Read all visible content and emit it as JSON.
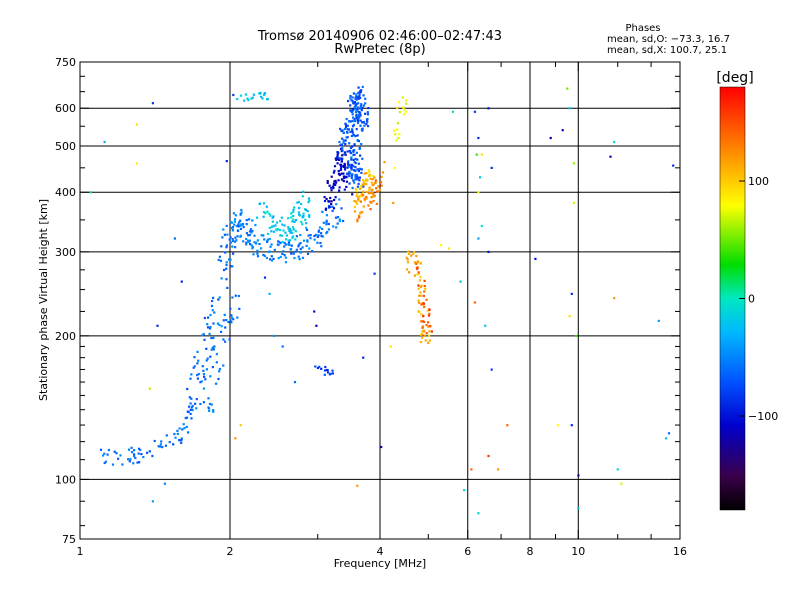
{
  "header": {
    "title_line1": "Tromsø 20140906 02:46:00–02:47:43",
    "title_line2": "RwPretec (8p)",
    "stats_title": "Phases",
    "stats_line1": "mean, sd,O: −73.3, 16.7",
    "stats_line2": "mean, sd,X: 100.7, 25.1"
  },
  "colorbar": {
    "label": "[deg]",
    "ticks": [
      {
        "value": 100,
        "label": "100"
      },
      {
        "value": 0,
        "label": "0"
      },
      {
        "value": -100,
        "label": "−100"
      }
    ],
    "range": [
      -180,
      180
    ]
  },
  "chart_data": {
    "type": "scatter",
    "title": "Tromsø 20140906 02:46:00–02:47:43",
    "subtitle": "RwPretec (8p)",
    "xlabel": "Frequency [MHz]",
    "ylabel": "Stationary phase Virtual Height [km]",
    "xscale": "log",
    "yscale": "log",
    "xlim": [
      1,
      16
    ],
    "ylim": [
      75,
      750
    ],
    "xticks": [
      {
        "value": 1,
        "label": "1"
      },
      {
        "value": 2,
        "label": "2"
      },
      {
        "value": 4,
        "label": "4"
      },
      {
        "value": 6,
        "label": "6"
      },
      {
        "value": 8,
        "label": "8"
      },
      {
        "value": 10,
        "label": "10"
      },
      {
        "value": 16,
        "label": "16"
      }
    ],
    "xminor": [
      3,
      5,
      7,
      9,
      12,
      14
    ],
    "xgrid": [
      2,
      4,
      6,
      8,
      10
    ],
    "yticks": [
      {
        "value": 75,
        "label": "75"
      },
      {
        "value": 100,
        "label": "100"
      },
      {
        "value": 200,
        "label": "200"
      },
      {
        "value": 300,
        "label": "300"
      },
      {
        "value": 400,
        "label": "400"
      },
      {
        "value": 500,
        "label": "500"
      },
      {
        "value": 600,
        "label": "600"
      },
      {
        "value": 750,
        "label": "750"
      }
    ],
    "yminor": [
      80,
      90,
      110,
      120,
      130,
      140,
      150,
      160,
      170,
      180,
      190,
      225,
      250,
      275,
      350,
      450,
      550,
      650,
      700
    ],
    "ygrid": [
      100,
      200,
      300,
      400,
      500,
      600
    ],
    "grid": true,
    "color_variable": "phase [deg]",
    "clusters": [
      {
        "points": [
          [
            1.1,
            113
          ],
          [
            1.15,
            112
          ],
          [
            1.2,
            111
          ],
          [
            1.28,
            112
          ],
          [
            1.35,
            114
          ],
          [
            1.45,
            117
          ],
          [
            1.55,
            122
          ],
          [
            1.62,
            128
          ],
          [
            1.66,
            140
          ],
          [
            1.7,
            155
          ],
          [
            1.75,
            175
          ],
          [
            1.8,
            200
          ],
          [
            1.88,
            225
          ],
          [
            1.95,
            255
          ],
          [
            1.98,
            290
          ]
        ],
        "phase": -60,
        "count": 130,
        "jf": 0.03,
        "jh": 0.03
      },
      {
        "points": [
          [
            1.8,
            140
          ],
          [
            1.85,
            170
          ],
          [
            1.9,
            190
          ],
          [
            1.97,
            210
          ],
          [
            2.03,
            240
          ]
        ],
        "phase": -55,
        "count": 50,
        "jf": 0.035,
        "jh": 0.06
      },
      {
        "points": [
          [
            1.95,
            300
          ],
          [
            2.0,
            325
          ],
          [
            2.05,
            350
          ],
          [
            2.12,
            335
          ],
          [
            2.2,
            320
          ],
          [
            2.35,
            305
          ],
          [
            2.5,
            300
          ],
          [
            2.7,
            305
          ],
          [
            2.9,
            315
          ],
          [
            3.1,
            340
          ],
          [
            3.3,
            370
          ]
        ],
        "phase": -55,
        "count": 200,
        "jf": 0.03,
        "jh": 0.05
      },
      {
        "points": [
          [
            2.3,
            370
          ],
          [
            2.45,
            340
          ],
          [
            2.6,
            330
          ],
          [
            2.75,
            350
          ],
          [
            2.85,
            380
          ]
        ],
        "phase": -20,
        "count": 90,
        "jf": 0.03,
        "jh": 0.05
      },
      {
        "points": [
          [
            3.1,
            360
          ],
          [
            3.2,
            400
          ],
          [
            3.3,
            440
          ],
          [
            3.35,
            470
          ],
          [
            3.45,
            420
          ]
        ],
        "phase": -110,
        "count": 90,
        "jf": 0.02,
        "jh": 0.06
      },
      {
        "points": [
          [
            3.38,
            480
          ],
          [
            3.45,
            540
          ],
          [
            3.55,
            600
          ],
          [
            3.65,
            640
          ],
          [
            3.7,
            560
          ],
          [
            3.6,
            500
          ],
          [
            3.5,
            450
          ],
          [
            3.62,
            420
          ]
        ],
        "phase": -70,
        "count": 220,
        "jf": 0.025,
        "jh": 0.05
      },
      {
        "points": [
          [
            3.6,
            380
          ],
          [
            3.7,
            400
          ],
          [
            3.75,
            430
          ],
          [
            3.85,
            410
          ]
        ],
        "phase": 105,
        "count": 50,
        "jf": 0.02,
        "jh": 0.04
      },
      {
        "points": [
          [
            3.6,
            360
          ],
          [
            3.7,
            375
          ],
          [
            3.85,
            390
          ],
          [
            3.95,
            420
          ],
          [
            4.0,
            450
          ]
        ],
        "phase": 130,
        "count": 45,
        "jf": 0.02,
        "jh": 0.04
      },
      {
        "points": [
          [
            4.5,
            280
          ],
          [
            4.7,
            300
          ],
          [
            4.8,
            270
          ],
          [
            4.85,
            240
          ],
          [
            4.9,
            210
          ],
          [
            4.95,
            195
          ]
        ],
        "phase": 110,
        "count": 55,
        "jf": 0.02,
        "jh": 0.04
      },
      {
        "points": [
          [
            4.8,
            280
          ],
          [
            4.9,
            250
          ],
          [
            4.95,
            225
          ],
          [
            5.0,
            205
          ]
        ],
        "phase": 150,
        "count": 30,
        "jf": 0.02,
        "jh": 0.03
      },
      {
        "points": [
          [
            4.4,
            580
          ],
          [
            4.45,
            620
          ],
          [
            4.35,
            520
          ]
        ],
        "phase": 80,
        "count": 16,
        "jf": 0.02,
        "jh": 0.04
      },
      {
        "points": [
          [
            2.1,
            630
          ],
          [
            2.25,
            635
          ],
          [
            2.4,
            640
          ]
        ],
        "phase": -20,
        "count": 20,
        "jf": 0.03,
        "jh": 0.015
      },
      {
        "points": [
          [
            3.0,
            172
          ],
          [
            3.1,
            168
          ],
          [
            3.2,
            170
          ]
        ],
        "phase": -85,
        "count": 14,
        "jf": 0.015,
        "jh": 0.015
      }
    ],
    "scatter_points": [
      [
        1.05,
        400,
        10
      ],
      [
        1.12,
        510,
        -30
      ],
      [
        1.3,
        555,
        90
      ],
      [
        1.3,
        460,
        85
      ],
      [
        1.4,
        615,
        -85
      ],
      [
        1.43,
        210,
        -90
      ],
      [
        1.38,
        155,
        65
      ],
      [
        1.6,
        260,
        -90
      ],
      [
        1.55,
        320,
        -60
      ],
      [
        1.48,
        98,
        -50
      ],
      [
        1.4,
        90,
        -40
      ],
      [
        1.97,
        465,
        -90
      ],
      [
        2.03,
        640,
        -80
      ],
      [
        2.35,
        265,
        -90
      ],
      [
        2.55,
        190,
        -60
      ],
      [
        2.7,
        160,
        -60
      ],
      [
        2.4,
        245,
        -30
      ],
      [
        2.45,
        200,
        -40
      ],
      [
        2.05,
        122,
        120
      ],
      [
        2.1,
        130,
        100
      ],
      [
        2.95,
        225,
        -100
      ],
      [
        2.98,
        210,
        -110
      ],
      [
        4.02,
        117,
        -120
      ],
      [
        3.9,
        270,
        -80
      ],
      [
        3.7,
        180,
        -90
      ],
      [
        3.6,
        97,
        120
      ],
      [
        4.25,
        380,
        120
      ],
      [
        4.35,
        520,
        70
      ],
      [
        4.28,
        450,
        80
      ],
      [
        4.2,
        190,
        90
      ],
      [
        5.3,
        310,
        80
      ],
      [
        5.5,
        305,
        90
      ],
      [
        5.8,
        260,
        -20
      ],
      [
        5.6,
        590,
        -10
      ],
      [
        5.9,
        95,
        -10
      ],
      [
        6.2,
        590,
        -80
      ],
      [
        6.3,
        520,
        -90
      ],
      [
        6.25,
        480,
        40
      ],
      [
        6.4,
        480,
        90
      ],
      [
        6.35,
        430,
        -20
      ],
      [
        6.3,
        400,
        80
      ],
      [
        6.6,
        600,
        -100
      ],
      [
        6.7,
        450,
        -90
      ],
      [
        6.4,
        340,
        0
      ],
      [
        6.3,
        320,
        -40
      ],
      [
        6.6,
        300,
        -100
      ],
      [
        6.2,
        235,
        140
      ],
      [
        6.5,
        210,
        -20
      ],
      [
        6.7,
        170,
        -80
      ],
      [
        6.1,
        105,
        140
      ],
      [
        6.6,
        112,
        160
      ],
      [
        6.9,
        105,
        120
      ],
      [
        7.2,
        130,
        140
      ],
      [
        6.3,
        85,
        -10
      ],
      [
        8.2,
        290,
        -100
      ],
      [
        8.8,
        520,
        -110
      ],
      [
        9.3,
        540,
        -110
      ],
      [
        9.5,
        660,
        50
      ],
      [
        9.6,
        600,
        -20
      ],
      [
        9.8,
        460,
        60
      ],
      [
        9.8,
        380,
        70
      ],
      [
        9.7,
        245,
        -90
      ],
      [
        9.6,
        220,
        90
      ],
      [
        9.9,
        200,
        40
      ],
      [
        9.7,
        130,
        -90
      ],
      [
        9.1,
        130,
        80
      ],
      [
        10.0,
        102,
        -120
      ],
      [
        10.0,
        87,
        -20
      ],
      [
        11.8,
        510,
        -10
      ],
      [
        11.6,
        475,
        -120
      ],
      [
        11.8,
        240,
        120
      ],
      [
        12.0,
        105,
        -10
      ],
      [
        12.2,
        98,
        70
      ],
      [
        14.5,
        215,
        -40
      ],
      [
        15.5,
        455,
        -90
      ],
      [
        15.0,
        122,
        -20
      ],
      [
        15.2,
        125,
        -60
      ]
    ]
  }
}
